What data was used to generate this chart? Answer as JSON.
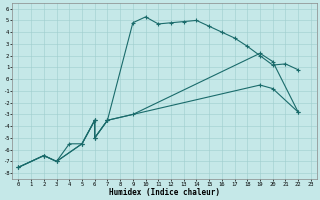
{
  "xlabel": "Humidex (Indice chaleur)",
  "xlim": [
    -0.5,
    23.5
  ],
  "ylim": [
    -8.5,
    6.5
  ],
  "xticks": [
    0,
    1,
    2,
    3,
    4,
    5,
    6,
    7,
    8,
    9,
    10,
    11,
    12,
    13,
    14,
    15,
    16,
    17,
    18,
    19,
    20,
    21,
    22,
    23
  ],
  "yticks": [
    6,
    5,
    4,
    3,
    2,
    1,
    0,
    -1,
    -2,
    -3,
    -4,
    -5,
    -6,
    -7,
    -8
  ],
  "bg_color": "#c5e8e8",
  "grid_color": "#9fcece",
  "line_color": "#1a6b6b",
  "line1_x": [
    0,
    2,
    3,
    4,
    5,
    6,
    6,
    7,
    9,
    10,
    11,
    12,
    13,
    14,
    15,
    16,
    17,
    18,
    19,
    20,
    21,
    22
  ],
  "line1_y": [
    -7.5,
    -6.5,
    -7.0,
    -5.5,
    -5.5,
    -3.5,
    -5.0,
    -3.5,
    4.8,
    5.3,
    4.7,
    4.8,
    4.9,
    5.0,
    4.5,
    4.0,
    3.5,
    2.8,
    2.0,
    1.2,
    1.3,
    0.8
  ],
  "line2_x": [
    0,
    2,
    3,
    5,
    6,
    6,
    7,
    7,
    9,
    19,
    20,
    22
  ],
  "line2_y": [
    -7.5,
    -6.5,
    -7.0,
    -5.5,
    -3.5,
    -5.0,
    -3.5,
    -3.5,
    -3.0,
    2.2,
    1.5,
    -2.8
  ],
  "line3_x": [
    0,
    2,
    3,
    5,
    6,
    6,
    7,
    19,
    20,
    22
  ],
  "line3_y": [
    -7.5,
    -6.5,
    -7.0,
    -5.5,
    -3.5,
    -5.0,
    -3.5,
    -0.5,
    -0.8,
    -2.8
  ]
}
